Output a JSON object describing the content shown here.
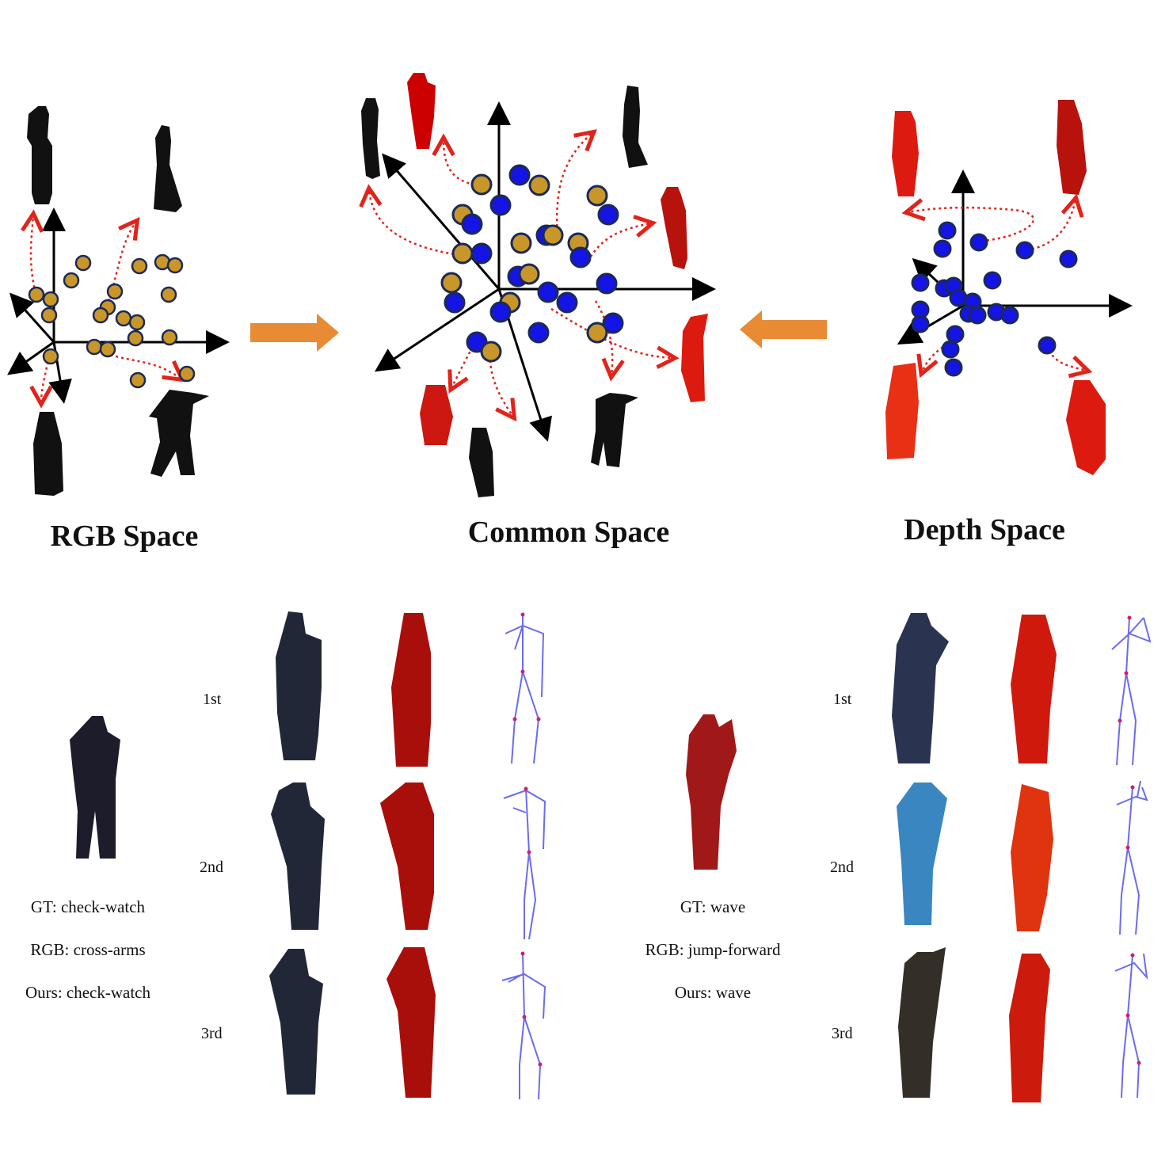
{
  "panels": {
    "rgb_title": "RGB Space",
    "common_title": "Common Space",
    "depth_title": "Depth Space"
  },
  "ranks": [
    "1st",
    "2nd",
    "3rd"
  ],
  "examples": [
    {
      "gt": "GT:  check-watch",
      "rgb": "RGB:  cross-arms",
      "ours": "Ours:  check-watch"
    },
    {
      "gt": "GT:  wave",
      "rgb": "RGB:  jump-forward",
      "ours": "Ours:  wave"
    }
  ],
  "colors": {
    "rgb_point": "#c9962a",
    "depth_point": "#1414e6",
    "point_stroke": "#1b2a55",
    "arrow": "#e98b35",
    "dotted_link": "#e2231a",
    "depth_silhouette": "#cc0000",
    "skeleton_line": "#6b6bf0",
    "skeleton_joint": "#d0206a"
  }
}
